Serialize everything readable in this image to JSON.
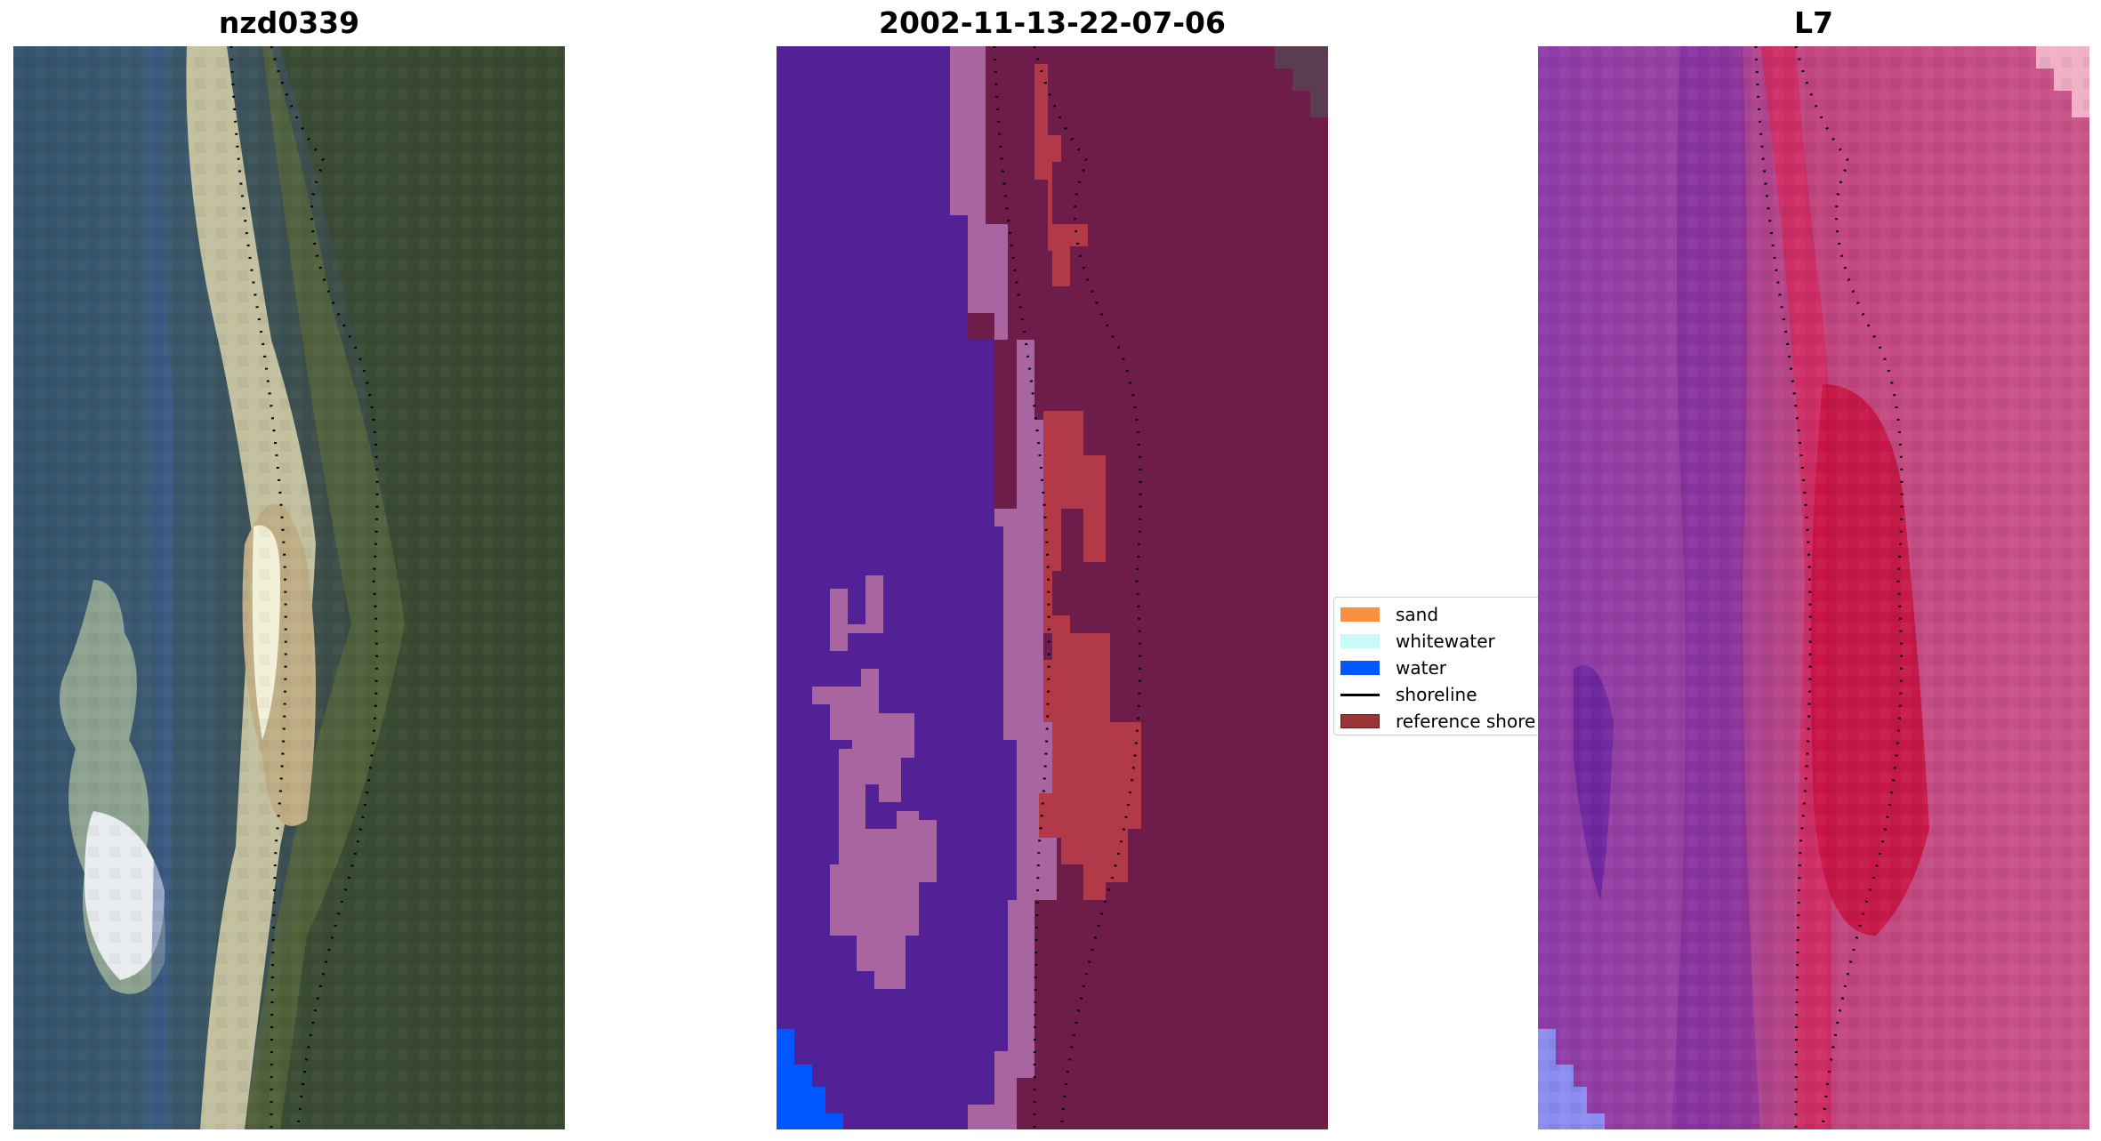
{
  "panels": [
    {
      "title": "nzd0339",
      "kind": "rgb"
    },
    {
      "title": "2002-11-13-22-07-06",
      "kind": "classified"
    },
    {
      "title": "L7",
      "kind": "index"
    }
  ],
  "legend": {
    "items": [
      {
        "label": "sand",
        "color": "#f7913e",
        "type": "patch"
      },
      {
        "label": "whitewater",
        "color": "#c8fbf6",
        "type": "patch"
      },
      {
        "label": "water",
        "color": "#0057ff",
        "type": "patch"
      },
      {
        "label": "shoreline",
        "color": "#000000",
        "type": "line"
      },
      {
        "label": "reference shore",
        "color": "#9b3535",
        "type": "patch"
      }
    ]
  },
  "colors": {
    "water_class": "#522195",
    "whitewater_class": "#a865a0",
    "sand_class": "#b23a48",
    "land_class": "#6e1c4a",
    "deep_water": "#0057ff"
  }
}
